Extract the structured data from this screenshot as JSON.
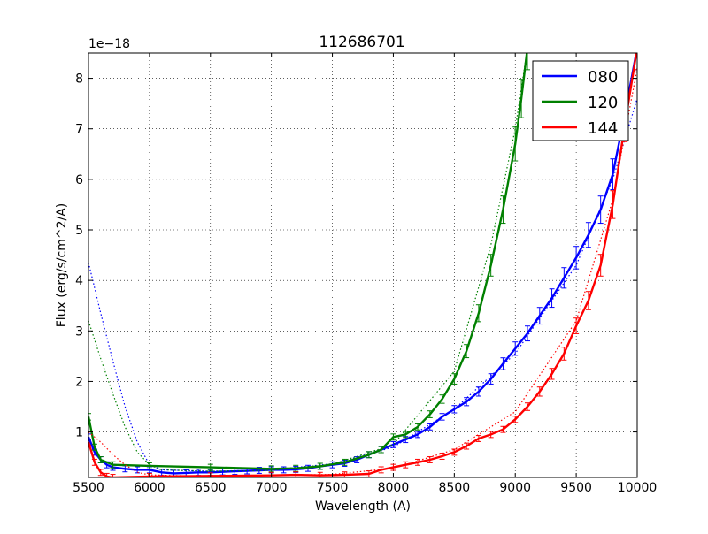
{
  "chart_data": {
    "type": "line",
    "title": "112686701",
    "xlabel": "Wavelength (A)",
    "ylabel": "Flux (erg/s/cm^2/A)",
    "y_offset_label": "1e−18",
    "xlim": [
      5500,
      10000
    ],
    "ylim": [
      0.1,
      8.5
    ],
    "x_ticks": [
      5500,
      6000,
      6500,
      7000,
      7500,
      8000,
      8500,
      9000,
      9500,
      10000
    ],
    "y_ticks": [
      1,
      2,
      3,
      4,
      5,
      6,
      7,
      8
    ],
    "grid": true,
    "grid_style": "dotted",
    "legend_position": "upper right",
    "series": [
      {
        "name": "080",
        "color": "#0000ff",
        "observed": [
          [
            5500,
            0.9
          ],
          [
            5550,
            0.6
          ],
          [
            5600,
            0.45
          ],
          [
            5650,
            0.35
          ],
          [
            5700,
            0.3
          ],
          [
            5800,
            0.27
          ],
          [
            5900,
            0.25
          ],
          [
            6000,
            0.25
          ],
          [
            6100,
            0.2
          ],
          [
            6200,
            0.18
          ],
          [
            6300,
            0.19
          ],
          [
            6400,
            0.2
          ],
          [
            6500,
            0.2
          ],
          [
            6600,
            0.21
          ],
          [
            6700,
            0.22
          ],
          [
            6800,
            0.23
          ],
          [
            6900,
            0.24
          ],
          [
            7000,
            0.25
          ],
          [
            7100,
            0.25
          ],
          [
            7200,
            0.26
          ],
          [
            7300,
            0.28
          ],
          [
            7400,
            0.32
          ],
          [
            7500,
            0.35
          ],
          [
            7600,
            0.38
          ],
          [
            7700,
            0.45
          ],
          [
            7800,
            0.55
          ],
          [
            7900,
            0.65
          ],
          [
            8000,
            0.75
          ],
          [
            8100,
            0.85
          ],
          [
            8200,
            0.95
          ],
          [
            8300,
            1.1
          ],
          [
            8400,
            1.3
          ],
          [
            8500,
            1.45
          ],
          [
            8600,
            1.6
          ],
          [
            8700,
            1.8
          ],
          [
            8800,
            2.05
          ],
          [
            8900,
            2.35
          ],
          [
            9000,
            2.65
          ],
          [
            9100,
            2.95
          ],
          [
            9200,
            3.3
          ],
          [
            9300,
            3.65
          ],
          [
            9400,
            4.05
          ],
          [
            9500,
            4.45
          ],
          [
            9600,
            4.9
          ],
          [
            9700,
            5.4
          ],
          [
            9800,
            6.1
          ],
          [
            9900,
            7.3
          ],
          [
            10000,
            8.6
          ]
        ],
        "model": [
          [
            5500,
            4.35
          ],
          [
            5600,
            3.35
          ],
          [
            5700,
            2.4
          ],
          [
            5800,
            1.5
          ],
          [
            5900,
            0.8
          ],
          [
            6000,
            0.35
          ],
          [
            6100,
            0.25
          ],
          [
            6500,
            0.22
          ],
          [
            7000,
            0.25
          ],
          [
            7500,
            0.37
          ],
          [
            8000,
            0.7
          ],
          [
            8500,
            1.45
          ],
          [
            9000,
            2.55
          ],
          [
            9500,
            4.3
          ],
          [
            9800,
            6.0
          ],
          [
            10000,
            7.6
          ]
        ]
      },
      {
        "name": "120",
        "color": "#008000",
        "observed": [
          [
            5500,
            1.3
          ],
          [
            5550,
            0.7
          ],
          [
            5600,
            0.45
          ],
          [
            5700,
            0.35
          ],
          [
            6000,
            0.33
          ],
          [
            6500,
            0.3
          ],
          [
            7000,
            0.27
          ],
          [
            7200,
            0.28
          ],
          [
            7400,
            0.32
          ],
          [
            7600,
            0.4
          ],
          [
            7800,
            0.55
          ],
          [
            7900,
            0.65
          ],
          [
            8000,
            0.9
          ],
          [
            8100,
            0.95
          ],
          [
            8200,
            1.1
          ],
          [
            8300,
            1.35
          ],
          [
            8400,
            1.65
          ],
          [
            8500,
            2.05
          ],
          [
            8600,
            2.6
          ],
          [
            8700,
            3.35
          ],
          [
            8800,
            4.3
          ],
          [
            8900,
            5.4
          ],
          [
            9000,
            6.7
          ],
          [
            9050,
            7.6
          ],
          [
            9100,
            8.6
          ]
        ],
        "model": [
          [
            5500,
            3.2
          ],
          [
            5600,
            2.45
          ],
          [
            5700,
            1.75
          ],
          [
            5800,
            1.1
          ],
          [
            5900,
            0.6
          ],
          [
            6000,
            0.35
          ],
          [
            6100,
            0.25
          ],
          [
            6500,
            0.22
          ],
          [
            7000,
            0.24
          ],
          [
            7500,
            0.36
          ],
          [
            8000,
            0.75
          ],
          [
            8500,
            2.2
          ],
          [
            8800,
            4.7
          ],
          [
            9000,
            7.0
          ],
          [
            9100,
            8.6
          ]
        ]
      },
      {
        "name": "144",
        "color": "#ff0000",
        "observed": [
          [
            5500,
            0.8
          ],
          [
            5550,
            0.4
          ],
          [
            5600,
            0.2
          ],
          [
            5650,
            0.12
          ],
          [
            5700,
            0.1
          ],
          [
            6000,
            0.12
          ],
          [
            6500,
            0.13
          ],
          [
            7000,
            0.14
          ],
          [
            7200,
            0.15
          ],
          [
            7400,
            0.14
          ],
          [
            7600,
            0.15
          ],
          [
            7800,
            0.17
          ],
          [
            7900,
            0.25
          ],
          [
            8000,
            0.3
          ],
          [
            8100,
            0.35
          ],
          [
            8200,
            0.4
          ],
          [
            8300,
            0.45
          ],
          [
            8400,
            0.52
          ],
          [
            8500,
            0.6
          ],
          [
            8600,
            0.72
          ],
          [
            8700,
            0.87
          ],
          [
            8800,
            0.95
          ],
          [
            8900,
            1.05
          ],
          [
            9000,
            1.25
          ],
          [
            9100,
            1.5
          ],
          [
            9200,
            1.8
          ],
          [
            9300,
            2.15
          ],
          [
            9400,
            2.55
          ],
          [
            9500,
            3.1
          ],
          [
            9600,
            3.6
          ],
          [
            9700,
            4.3
          ],
          [
            9800,
            5.5
          ],
          [
            9900,
            7.1
          ],
          [
            10000,
            8.6
          ]
        ],
        "model": [
          [
            5500,
            1.0
          ],
          [
            5600,
            0.8
          ],
          [
            5700,
            0.55
          ],
          [
            5800,
            0.35
          ],
          [
            5900,
            0.2
          ],
          [
            6000,
            0.15
          ],
          [
            6500,
            0.12
          ],
          [
            7000,
            0.14
          ],
          [
            7500,
            0.16
          ],
          [
            8000,
            0.28
          ],
          [
            8500,
            0.65
          ],
          [
            9000,
            1.4
          ],
          [
            9500,
            3.2
          ],
          [
            9800,
            5.6
          ],
          [
            10000,
            8.2
          ]
        ]
      }
    ]
  }
}
